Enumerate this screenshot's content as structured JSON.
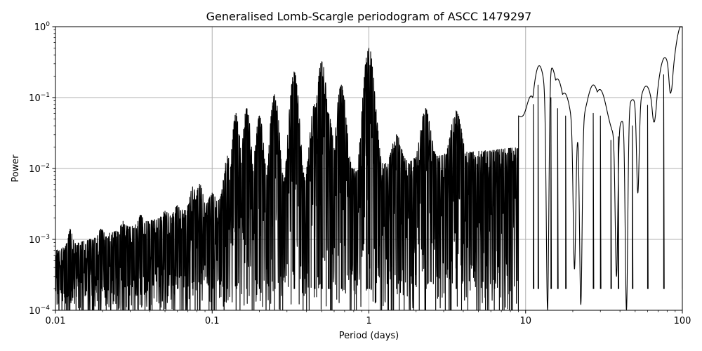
{
  "chart_data": {
    "type": "line",
    "title": "Generalised Lomb-Scargle periodogram of ASCC 1479297",
    "xlabel": "Period (days)",
    "ylabel": "Power",
    "xscale": "log",
    "yscale": "log",
    "xlim": [
      0.01,
      100
    ],
    "ylim": [
      0.0001,
      1
    ],
    "grid": true,
    "line_color": "#000000",
    "grid_color": "#b0b0b0",
    "x_ticks": [
      {
        "value": 0.01,
        "label": "0.01"
      },
      {
        "value": 0.1,
        "label": "0.1"
      },
      {
        "value": 1,
        "label": "1"
      },
      {
        "value": 10,
        "label": "10"
      },
      {
        "value": 100,
        "label": "100"
      }
    ],
    "y_ticks": [
      {
        "value": 0.0001,
        "base": "10",
        "exp": "−4"
      },
      {
        "value": 0.001,
        "base": "10",
        "exp": "−3"
      },
      {
        "value": 0.01,
        "base": "10",
        "exp": "−2"
      },
      {
        "value": 0.1,
        "base": "10",
        "exp": "−1"
      },
      {
        "value": 1,
        "base": "10",
        "exp": "0"
      }
    ],
    "peaks": [
      {
        "x": 0.0124,
        "y": 0.0014
      },
      {
        "x": 0.0195,
        "y": 0.0014
      },
      {
        "x": 0.027,
        "y": 0.0018
      },
      {
        "x": 0.035,
        "y": 0.0022
      },
      {
        "x": 0.05,
        "y": 0.0025
      },
      {
        "x": 0.06,
        "y": 0.003
      },
      {
        "x": 0.075,
        "y": 0.0055
      },
      {
        "x": 0.083,
        "y": 0.006
      },
      {
        "x": 0.1,
        "y": 0.0045
      },
      {
        "x": 0.125,
        "y": 0.015
      },
      {
        "x": 0.142,
        "y": 0.06
      },
      {
        "x": 0.166,
        "y": 0.07
      },
      {
        "x": 0.2,
        "y": 0.055
      },
      {
        "x": 0.25,
        "y": 0.11
      },
      {
        "x": 0.333,
        "y": 0.23
      },
      {
        "x": 0.45,
        "y": 0.08
      },
      {
        "x": 0.5,
        "y": 0.32
      },
      {
        "x": 0.55,
        "y": 0.06
      },
      {
        "x": 0.667,
        "y": 0.15
      },
      {
        "x": 0.97,
        "y": 0.13
      },
      {
        "x": 1.0,
        "y": 0.5
      },
      {
        "x": 1.03,
        "y": 0.2
      },
      {
        "x": 1.5,
        "y": 0.03
      },
      {
        "x": 2.3,
        "y": 0.07
      },
      {
        "x": 3.6,
        "y": 0.065
      },
      {
        "x": 6.3,
        "y": 0.018
      },
      {
        "x": 11.2,
        "y": 0.08
      },
      {
        "x": 12.0,
        "y": 0.15
      },
      {
        "x": 14.5,
        "y": 0.1
      },
      {
        "x": 16.0,
        "y": 0.07
      },
      {
        "x": 18.0,
        "y": 0.055
      },
      {
        "x": 27.0,
        "y": 0.06
      },
      {
        "x": 30.0,
        "y": 0.055
      },
      {
        "x": 35.0,
        "y": 0.025
      },
      {
        "x": 39.0,
        "y": 0.028
      },
      {
        "x": 48.0,
        "y": 0.04
      },
      {
        "x": 60.0,
        "y": 0.078
      },
      {
        "x": 76.0,
        "y": 0.21
      },
      {
        "x": 100.0,
        "y": 0.5
      }
    ],
    "troughs": [
      {
        "x": 13.8,
        "y": 0.0001
      },
      {
        "x": 20.5,
        "y": 0.00038
      },
      {
        "x": 22.5,
        "y": 0.00012
      },
      {
        "x": 38.0,
        "y": 0.0003
      },
      {
        "x": 44.0,
        "y": 0.0001
      },
      {
        "x": 52.0,
        "y": 0.0045
      },
      {
        "x": 66.0,
        "y": 0.045
      },
      {
        "x": 84.0,
        "y": 0.115
      }
    ]
  }
}
